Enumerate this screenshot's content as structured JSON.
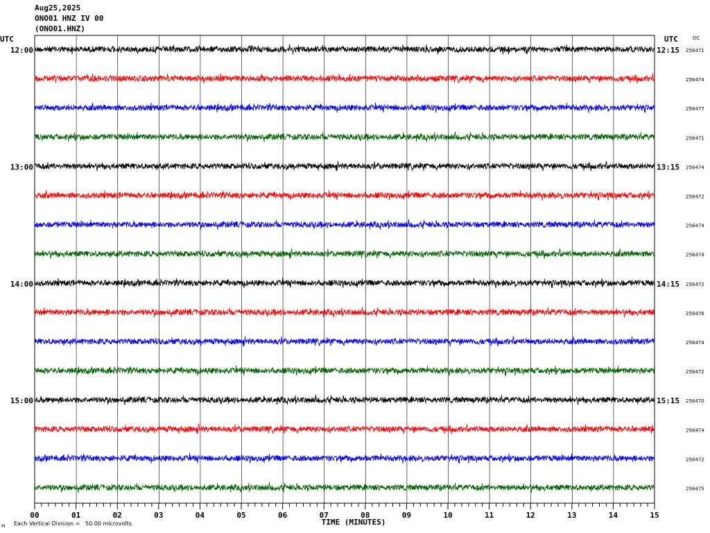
{
  "header": {
    "date": "Aug25,2025",
    "station": "ONO01 HNZ IV 00",
    "channel": "(ONO01.HNZ)"
  },
  "left_axis_label": "UTC",
  "right_axis_label": "UTC",
  "dc_label": "DC",
  "footer": {
    "scale_note": "Each Vertical Division =   50.00 microvolts",
    "corner_mark": "M"
  },
  "chart_data": {
    "type": "line",
    "title": "",
    "xlabel": "TIME (MINUTES)",
    "ylabel": "",
    "xlim": [
      0,
      15
    ],
    "x_ticks": [
      "00",
      "01",
      "02",
      "03",
      "04",
      "05",
      "06",
      "07",
      "08",
      "09",
      "10",
      "11",
      "12",
      "13",
      "14",
      "15"
    ],
    "grid": true,
    "row_minutes": 15,
    "rows": [
      {
        "left_label": "12:00",
        "right_label": "12:15",
        "dc": "256471",
        "color": "#000000"
      },
      {
        "left_label": "",
        "right_label": "",
        "dc": "256474",
        "color": "#ff0000"
      },
      {
        "left_label": "",
        "right_label": "",
        "dc": "256477",
        "color": "#0000ff"
      },
      {
        "left_label": "",
        "right_label": "",
        "dc": "256471",
        "color": "#006400"
      },
      {
        "left_label": "13:00",
        "right_label": "13:15",
        "dc": "256474",
        "color": "#000000"
      },
      {
        "left_label": "",
        "right_label": "",
        "dc": "256472",
        "color": "#ff0000"
      },
      {
        "left_label": "",
        "right_label": "",
        "dc": "256474",
        "color": "#0000ff"
      },
      {
        "left_label": "",
        "right_label": "",
        "dc": "256474",
        "color": "#006400"
      },
      {
        "left_label": "14:00",
        "right_label": "14:15",
        "dc": "256472",
        "color": "#000000"
      },
      {
        "left_label": "",
        "right_label": "",
        "dc": "256476",
        "color": "#ff0000"
      },
      {
        "left_label": "",
        "right_label": "",
        "dc": "256474",
        "color": "#0000ff"
      },
      {
        "left_label": "",
        "right_label": "",
        "dc": "256472",
        "color": "#006400"
      },
      {
        "left_label": "15:00",
        "right_label": "15:15",
        "dc": "256470",
        "color": "#000000"
      },
      {
        "left_label": "",
        "right_label": "",
        "dc": "256474",
        "color": "#ff0000"
      },
      {
        "left_label": "",
        "right_label": "",
        "dc": "256472",
        "color": "#0000ff"
      },
      {
        "left_label": "",
        "right_label": "",
        "dc": "256475",
        "color": "#006400"
      }
    ]
  }
}
